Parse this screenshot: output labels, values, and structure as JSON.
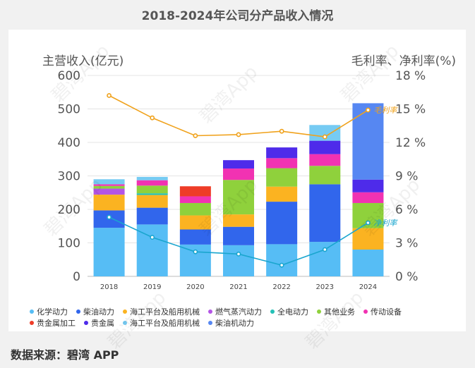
{
  "title": "2018-2024年公司分产品收入情况",
  "source": "数据来源：碧湾 APP",
  "watermark": "碧湾App",
  "chart_data": {
    "type": "bar",
    "stacked": true,
    "categories": [
      "2018",
      "2019",
      "2020",
      "2021",
      "2022",
      "2023",
      "2024"
    ],
    "ylabel_left": "主营收入(亿元)",
    "ylabel_right": "毛利率、净利率(%)",
    "ylim_left": [
      0,
      600
    ],
    "yticks_left": [
      "0",
      "100",
      "200",
      "300",
      "400",
      "500",
      "600"
    ],
    "ylim_right": [
      0,
      18
    ],
    "yticks_right": [
      "0 %",
      "3 %",
      "6 %",
      "9 %",
      "12 %",
      "15 %",
      "18 %"
    ],
    "series": [
      {
        "name": "化学动力",
        "color": "#56bdf5",
        "values": [
          145,
          155,
          95,
          93,
          96,
          103,
          80
        ]
      },
      {
        "name": "柴油动力",
        "color": "#3166ec",
        "values": [
          52,
          50,
          45,
          55,
          127,
          172,
          0
        ]
      },
      {
        "name": "海工平台及船用机械",
        "color": "#fbb321",
        "values": [
          47,
          38,
          42,
          37,
          45,
          0,
          64
        ]
      },
      {
        "name": "燃气蒸汽动力",
        "color": "#b455e6",
        "values": [
          18,
          0,
          0,
          0,
          0,
          0,
          0
        ]
      },
      {
        "name": "全电动力",
        "color": "#24c1b7",
        "values": [
          0,
          5,
          0,
          0,
          0,
          0,
          0
        ]
      },
      {
        "name": "其他业务",
        "color": "#8fd13c",
        "values": [
          8,
          23,
          37,
          103,
          55,
          55,
          75
        ]
      },
      {
        "name": "传动设备",
        "color": "#f132b2",
        "values": [
          5,
          16,
          20,
          34,
          30,
          35,
          32
        ]
      },
      {
        "name": "贵金属加工",
        "color": "#ee3c27",
        "values": [
          0,
          0,
          30,
          0,
          0,
          0,
          0
        ]
      },
      {
        "name": "贵金属",
        "color": "#4e2bea",
        "values": [
          0,
          0,
          0,
          25,
          32,
          40,
          38
        ]
      },
      {
        "name": "海工平台及船用机械",
        "color": "#76cbf3",
        "values": [
          15,
          10,
          0,
          0,
          0,
          47,
          0
        ]
      },
      {
        "name": "柴油机动力",
        "color": "#5687f2",
        "values": [
          0,
          0,
          0,
          0,
          0,
          0,
          228
        ]
      }
    ],
    "lines": [
      {
        "name": "毛利率",
        "color": "#f0a21c",
        "axis": "right",
        "values": [
          16.2,
          14.2,
          12.6,
          12.7,
          13.0,
          12.5,
          14.9
        ]
      },
      {
        "name": "净利率",
        "color": "#1aa6cf",
        "axis": "right",
        "values": [
          5.3,
          3.5,
          2.2,
          2.0,
          1.0,
          2.4,
          4.8
        ]
      }
    ]
  }
}
